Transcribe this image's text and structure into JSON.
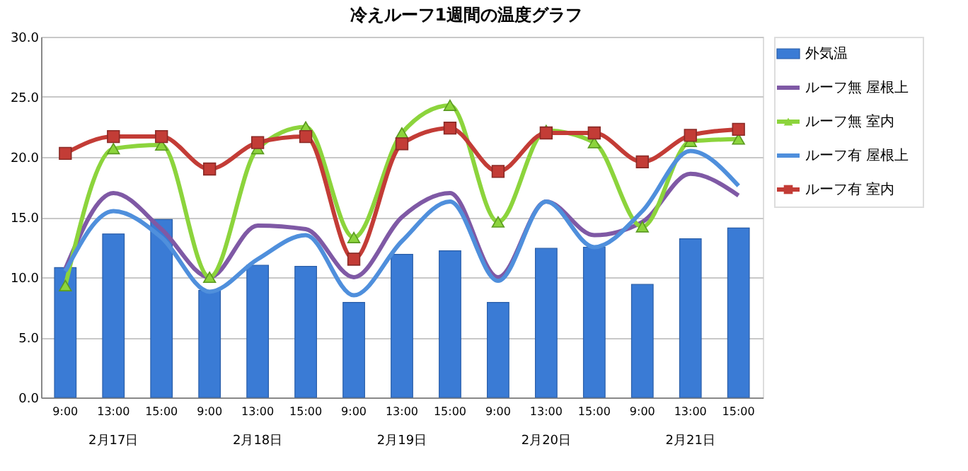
{
  "chart_data": {
    "type": "bar",
    "title": "冷えルーフ1週間の温度グラフ",
    "categories": [
      "9:00",
      "13:00",
      "15:00",
      "9:00",
      "13:00",
      "15:00",
      "9:00",
      "13:00",
      "15:00",
      "9:00",
      "13:00",
      "15:00",
      "9:00",
      "13:00",
      "15:00"
    ],
    "annotations": [
      "2月17日",
      "2月18日",
      "2月19日",
      "2月20日",
      "2月21日"
    ],
    "series": [
      {
        "name": "外気温",
        "color": "#3a7bd5",
        "values": [
          10.8,
          13.6,
          14.8,
          8.9,
          11.0,
          10.9,
          7.9,
          11.9,
          12.2,
          7.9,
          12.4,
          12.5,
          9.4,
          13.2,
          14.1
        ]
      },
      {
        "name": "ルーフ無 屋根上",
        "type": "line",
        "marker": "none",
        "color": "#7f59a5",
        "values": [
          10.7,
          17.0,
          14.0,
          10.0,
          14.3,
          14.0,
          10.0,
          15.0,
          17.0,
          10.0,
          16.3,
          13.5,
          14.6,
          18.6,
          16.8
        ]
      },
      {
        "name": "ルーフ無 室内",
        "type": "line",
        "marker": "triangle",
        "color": "#8cd43c",
        "values": [
          9.3,
          20.7,
          21.0,
          10.0,
          20.7,
          22.5,
          13.3,
          22.0,
          24.3,
          14.6,
          22.2,
          21.2,
          14.2,
          21.3,
          21.5
        ]
      },
      {
        "name": "ルーフ有 屋根上",
        "type": "line",
        "marker": "none",
        "color": "#4f8fdc",
        "values": [
          10.5,
          15.5,
          13.3,
          8.8,
          11.5,
          13.5,
          8.5,
          13.0,
          16.3,
          9.7,
          16.3,
          12.5,
          15.5,
          20.5,
          17.6
        ]
      },
      {
        "name": "ルーフ有 室内",
        "type": "line",
        "marker": "square",
        "color": "#c33c36",
        "values": [
          20.3,
          21.7,
          21.7,
          19.0,
          21.2,
          21.7,
          11.5,
          21.1,
          22.4,
          18.8,
          22.0,
          22.0,
          19.6,
          21.8,
          22.3
        ]
      }
    ],
    "ylim": [
      0,
      30
    ],
    "yticks": [
      {
        "value": 0,
        "label": "0.0"
      },
      {
        "value": 5,
        "label": "5.0"
      },
      {
        "value": 10,
        "label": "10.0"
      },
      {
        "value": 15,
        "label": "15.0"
      },
      {
        "value": 20,
        "label": "20.0"
      },
      {
        "value": 25,
        "label": "25.0"
      },
      {
        "value": 30,
        "label": "30.0"
      }
    ],
    "grid": "y",
    "legend": "right",
    "line_style": "solid"
  }
}
